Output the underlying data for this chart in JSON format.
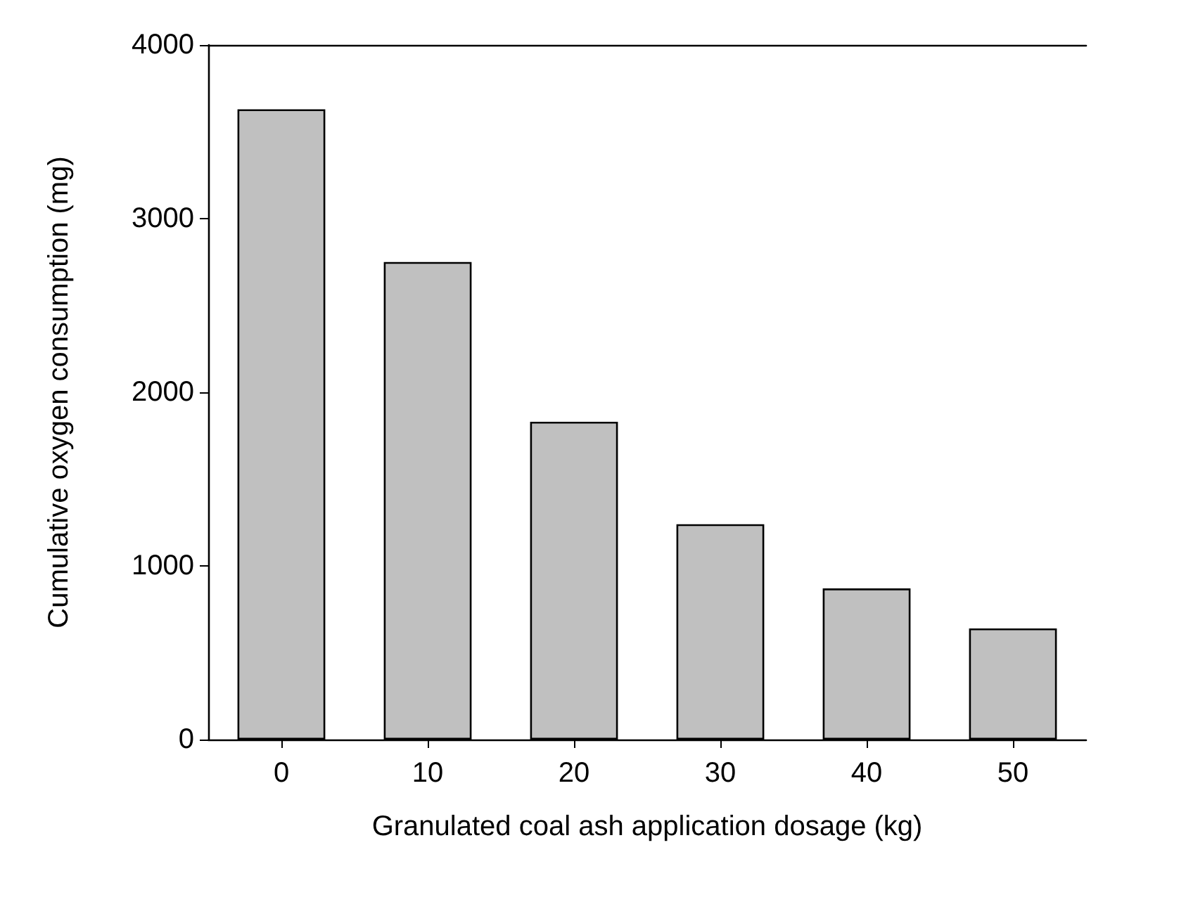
{
  "chart_data": {
    "type": "bar",
    "xlabel": "Granulated coal ash application dosage (kg)",
    "ylabel": "Cumulative oxygen consumption (mg)",
    "categories": [
      "0",
      "10",
      "20",
      "30",
      "40",
      "50"
    ],
    "values": [
      3630,
      2750,
      1830,
      1240,
      870,
      640
    ],
    "color": "#c0c0c0",
    "ylim": [
      0,
      4000
    ],
    "yticks": [
      0,
      1000,
      2000,
      3000,
      4000
    ],
    "grid": false
  }
}
